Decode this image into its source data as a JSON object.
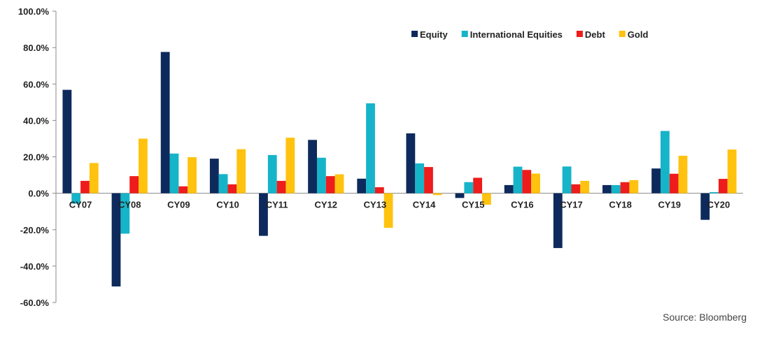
{
  "chart_data": {
    "type": "bar",
    "categories": [
      "CY07",
      "CY08",
      "CY09",
      "CY10",
      "CY11",
      "CY12",
      "CY13",
      "CY14",
      "CY15",
      "CY16",
      "CY17",
      "CY18",
      "CY19",
      "CY20"
    ],
    "series": [
      {
        "name": "Equity",
        "color": "#0e2a5c",
        "values": [
          56.8,
          -51.2,
          77.6,
          19.0,
          -23.4,
          29.3,
          8.0,
          32.9,
          -2.6,
          4.5,
          -30.1,
          4.5,
          13.6,
          -14.6
        ]
      },
      {
        "name": "International Equities",
        "color": "#16b4c8",
        "values": [
          -5.7,
          -22.2,
          21.8,
          10.5,
          21.0,
          19.5,
          49.4,
          16.4,
          6.1,
          14.6,
          14.7,
          4.5,
          34.2,
          0.6
        ]
      },
      {
        "name": "Debt",
        "color": "#ee1c1c",
        "values": [
          6.8,
          9.4,
          3.8,
          4.9,
          6.8,
          9.4,
          3.3,
          14.4,
          8.5,
          12.8,
          4.9,
          6.1,
          10.7,
          7.9
        ]
      },
      {
        "name": "Gold",
        "color": "#ffc20e",
        "values": [
          16.6,
          30.0,
          19.8,
          24.2,
          30.5,
          10.4,
          -19.0,
          -1.0,
          -6.3,
          10.8,
          6.8,
          7.2,
          20.6,
          24.0
        ]
      }
    ],
    "yticks": [
      "100.0%",
      "80.0%",
      "60.0%",
      "40.0%",
      "20.0%",
      "0.0%",
      "-20.0%",
      "-40.0%",
      "-60.0%"
    ],
    "ylim": [
      -60,
      100
    ],
    "legend_position": "top-right",
    "grid": false,
    "title": "",
    "xlabel": "",
    "ylabel": ""
  },
  "source_text": "Source: Bloomberg"
}
